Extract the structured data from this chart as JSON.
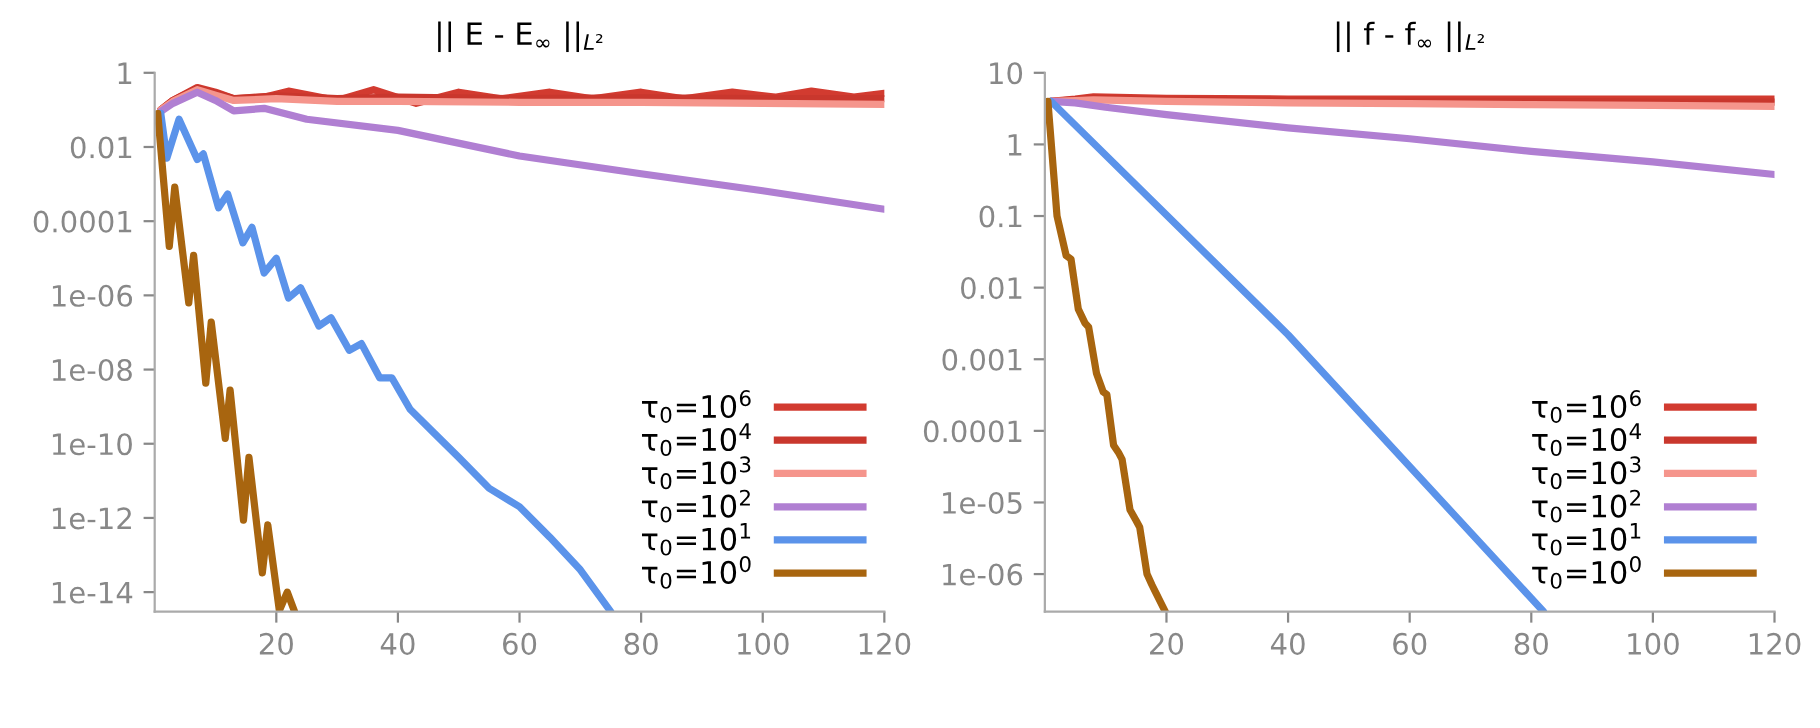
{
  "chart_data": [
    {
      "type": "line",
      "title": "|| E - E$_{∞}$ ||$_{L²}$",
      "log": "y",
      "grid": false,
      "legend": "bottom right",
      "line_style": "solid",
      "marker": "none",
      "xlim": [
        0,
        120
      ],
      "xticks": [
        20,
        40,
        60,
        80,
        100,
        120
      ],
      "ylim": [
        3e-15,
        1
      ],
      "yticks": [
        1,
        0.01,
        0.0001,
        {
          "value": 1e-06,
          "label": "1e-06"
        },
        {
          "value": 1e-08,
          "label": "1e-08"
        },
        {
          "value": 1e-10,
          "label": "1e-10"
        },
        {
          "value": 1e-12,
          "label": "1e-12"
        },
        {
          "value": 1e-14,
          "label": "1e-14"
        }
      ],
      "series": [
        {
          "name": "τ$_{0}$=10$^{6}$",
          "color": "#d23b30",
          "x": [
            1,
            3,
            7,
            10,
            13,
            18,
            22,
            30,
            36,
            43,
            50,
            57,
            65,
            72,
            80,
            87,
            95,
            102,
            108,
            115,
            120
          ],
          "values": [
            0.1,
            0.18,
            0.4,
            0.3,
            0.2,
            0.22,
            0.32,
            0.18,
            0.35,
            0.15,
            0.3,
            0.2,
            0.3,
            0.2,
            0.3,
            0.2,
            0.3,
            0.22,
            0.32,
            0.22,
            0.28
          ]
        },
        {
          "name": "τ$_{0}$=10$^{4}$",
          "color": "#c9372d",
          "x": [
            1,
            3,
            7,
            10,
            13,
            20,
            30,
            40,
            60,
            80,
            100,
            120
          ],
          "values": [
            0.1,
            0.18,
            0.38,
            0.28,
            0.2,
            0.24,
            0.2,
            0.22,
            0.2,
            0.21,
            0.2,
            0.2
          ]
        },
        {
          "name": "τ$_{0}$=10$^{3}$",
          "color": "#f5958c",
          "x": [
            1,
            3,
            7,
            10,
            13,
            20,
            30,
            40,
            60,
            80,
            100,
            120
          ],
          "values": [
            0.1,
            0.17,
            0.35,
            0.25,
            0.18,
            0.2,
            0.17,
            0.17,
            0.16,
            0.16,
            0.15,
            0.14
          ]
        },
        {
          "name": "τ$_{0}$=10$^{2}$",
          "color": "#b07fd2",
          "x": [
            1,
            3,
            7,
            10,
            13,
            18,
            25,
            40,
            60,
            80,
            100,
            120
          ],
          "values": [
            0.09,
            0.15,
            0.3,
            0.18,
            0.094,
            0.11,
            0.056,
            0.028,
            0.0057,
            0.0019,
            0.00066,
            0.00021
          ]
        },
        {
          "name": "τ$_{0}$=10$^{1}$",
          "color": "#5b93ea",
          "x": [
            1,
            2,
            4,
            7,
            8,
            10.5,
            12,
            14.5,
            16,
            18,
            20,
            22,
            24,
            27,
            29,
            32,
            34,
            37,
            39,
            42,
            46,
            50,
            55,
            60,
            65,
            70,
            75
          ],
          "values": [
            0.08,
            0.005,
            0.056,
            0.0046,
            0.0065,
            0.00023,
            0.00054,
            2.6e-05,
            6.8e-05,
            4e-06,
            1e-05,
            8.5e-07,
            1.6e-06,
            1.5e-07,
            2.5e-07,
            3.3e-08,
            5e-08,
            6e-09,
            6e-09,
            8.5e-10,
            1.9e-10,
            4.3e-11,
            6.3e-12,
            2e-12,
            3e-13,
            4e-14,
            3e-15
          ]
        },
        {
          "name": "τ$_{0}$=10$^{0}$",
          "color": "#a8650f",
          "x": [
            0.5,
            2.4,
            3.3,
            5.6,
            6.4,
            8.4,
            9.3,
            11.6,
            12.4,
            14.6,
            15.5,
            17.7,
            18.6,
            20.5,
            21.8,
            23
          ],
          "values": [
            0.08,
            2.1e-05,
            0.00083,
            6.3e-07,
            1.2e-05,
            4.3e-09,
            1.9e-07,
            1.4e-10,
            2.8e-09,
            8.7e-13,
            4.3e-11,
            3.3e-14,
            6.5e-13,
            3.2e-15,
            1e-14,
            3e-15
          ]
        }
      ]
    },
    {
      "type": "line",
      "title": "|| f - f$_{∞}$ ||$_{L²}$",
      "log": "y",
      "grid": false,
      "legend": "bottom right",
      "line_style": "solid",
      "marker": "none",
      "xlim": [
        0,
        120
      ],
      "xticks": [
        20,
        40,
        60,
        80,
        100,
        120
      ],
      "ylim": [
        3e-07,
        10
      ],
      "yticks": [
        10,
        1,
        0.1,
        0.01,
        0.001,
        0.0001,
        1e-05,
        {
          "value": 1e-06,
          "label": "1e-06"
        }
      ],
      "series": [
        {
          "name": "τ$_{0}$=10$^{6}$",
          "color": "#d23b30",
          "x": [
            1,
            5,
            8,
            20,
            40,
            60,
            80,
            100,
            120
          ],
          "values": [
            4,
            4.3,
            4.6,
            4.4,
            4.3,
            4.3,
            4.3,
            4.3,
            4.3
          ]
        },
        {
          "name": "τ$_{0}$=10$^{4}$",
          "color": "#c9372d",
          "x": [
            1,
            5,
            8,
            20,
            40,
            60,
            80,
            100,
            120
          ],
          "values": [
            4,
            4.2,
            4.4,
            4.2,
            4.1,
            4,
            4,
            3.9,
            3.9
          ]
        },
        {
          "name": "τ$_{0}$=10$^{3}$",
          "color": "#f5958c",
          "x": [
            1,
            5,
            8,
            20,
            40,
            60,
            80,
            100,
            120
          ],
          "values": [
            4,
            4.1,
            4.2,
            4,
            3.8,
            3.7,
            3.6,
            3.5,
            3.4
          ]
        },
        {
          "name": "τ$_{0}$=10$^{2}$",
          "color": "#b07fd2",
          "x": [
            1,
            5,
            10,
            20,
            40,
            60,
            80,
            100,
            120
          ],
          "values": [
            4,
            3.8,
            3.3,
            2.6,
            1.7,
            1.2,
            0.8,
            0.57,
            0.38
          ]
        },
        {
          "name": "τ$_{0}$=10$^{1}$",
          "color": "#5b93ea",
          "x": [
            1,
            40,
            82
          ],
          "values": [
            4,
            0.0022,
            3e-07
          ]
        },
        {
          "name": "τ$_{0}$=10$^{0}$",
          "color": "#a8650f",
          "x": [
            0.5,
            2,
            3.5,
            4.3,
            5.5,
            6.6,
            7.2,
            8.5,
            9.6,
            10.2,
            11.3,
            12.1,
            12.7,
            14,
            15,
            15.6,
            16.8,
            17.6,
            18.2,
            19.8
          ],
          "values": [
            4,
            0.1,
            0.028,
            0.025,
            0.005,
            0.0032,
            0.0028,
            0.00063,
            0.00035,
            0.00032,
            6.3e-05,
            5e-05,
            4e-05,
            7.9e-06,
            5.6e-06,
            4.5e-06,
            1e-06,
            7.1e-07,
            5.6e-07,
            3e-07
          ]
        }
      ]
    }
  ]
}
